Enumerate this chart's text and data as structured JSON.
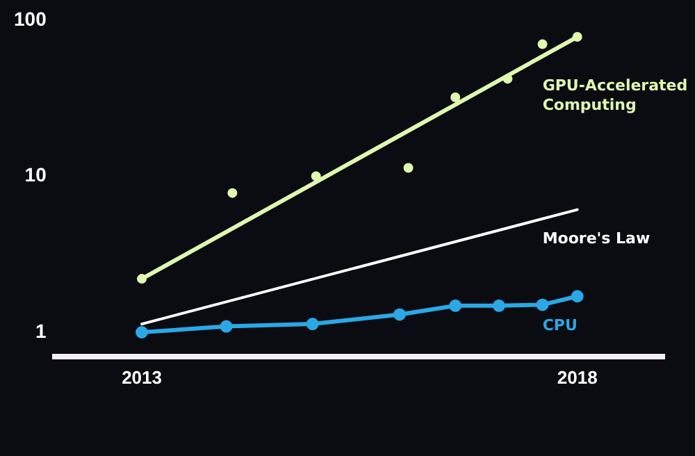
{
  "chart_data": {
    "type": "line",
    "xlim": [
      2012,
      2019
    ],
    "xticks": [
      2013,
      2018
    ],
    "ylim": [
      0.7,
      100
    ],
    "yticks": [
      1,
      10,
      100
    ],
    "log": "y",
    "grid": false,
    "legend": false,
    "series": [
      {
        "type": "scatter",
        "color": "#dff7b0",
        "marker": "circle",
        "x": [
          2013,
          2014.04,
          2015,
          2016.06,
          2016.6,
          2017.2,
          2017.6,
          2018
        ],
        "values": [
          2.2,
          7.8,
          10,
          11.3,
          32,
          42,
          70,
          78
        ]
      },
      {
        "name": "GPU-Accelerated Computing",
        "color": "#dff7b0",
        "marker": "none",
        "x": [
          2013,
          2018
        ],
        "values": [
          2.2,
          78
        ]
      },
      {
        "name": "Moore's Law",
        "color": "#ffffff",
        "marker": "none",
        "x": [
          2013,
          2018
        ],
        "values": [
          1.13,
          6.1
        ]
      },
      {
        "name": "CPU",
        "color": "#2aa8e6",
        "marker": "circle",
        "x": [
          2013,
          2013.97,
          2014.96,
          2015.96,
          2016.6,
          2017.1,
          2017.6,
          2018
        ],
        "values": [
          1,
          1.09,
          1.13,
          1.3,
          1.48,
          1.48,
          1.5,
          1.7
        ]
      }
    ]
  }
}
